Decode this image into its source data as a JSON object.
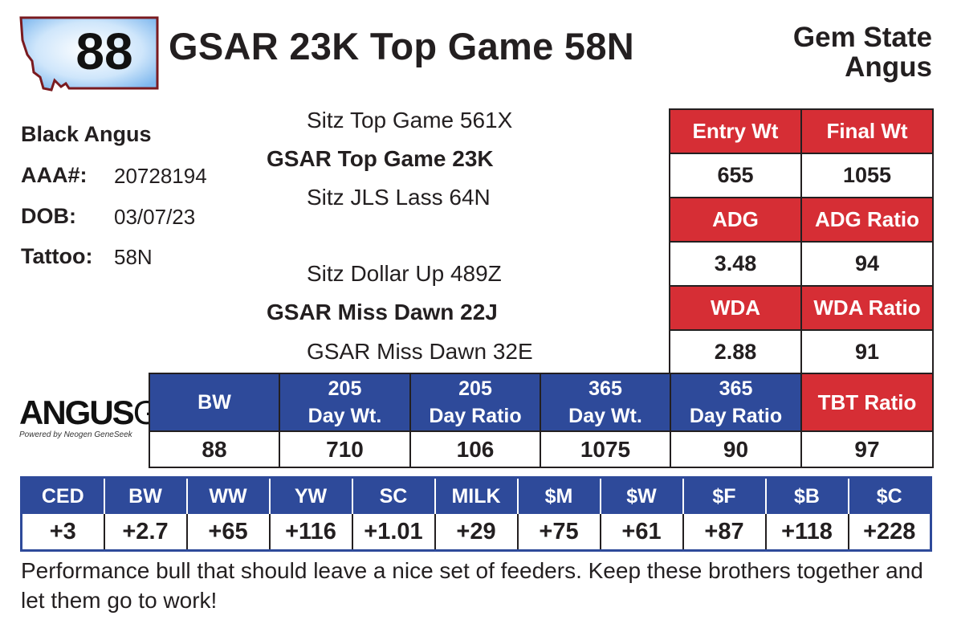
{
  "lot": {
    "number": "88"
  },
  "title": "GSAR 23K Top Game 58N",
  "breeder": {
    "line1": "Gem State",
    "line2": "Angus"
  },
  "info": {
    "breed": "Black Angus",
    "aaa_label": "AAA#:",
    "aaa_value": "20728194",
    "dob_label": "DOB:",
    "dob_value": "03/07/23",
    "tattoo_label": "Tattoo:",
    "tattoo_value": "58N"
  },
  "pedigree": {
    "sire_sire": "Sitz Top Game 561X",
    "sire": "GSAR Top Game 23K",
    "sire_dam": "Sitz JLS Lass 64N",
    "dam_sire": "Sitz Dollar Up 489Z",
    "dam": "GSAR Miss Dawn 22J",
    "dam_dam": "GSAR Miss Dawn 32E"
  },
  "weights": {
    "rows": [
      {
        "h1": "Entry Wt",
        "h2": "Final Wt",
        "v1": "655",
        "v2": "1055"
      },
      {
        "h1": "ADG",
        "h2": "ADG Ratio",
        "v1": "3.48",
        "v2": "94"
      },
      {
        "h1": "WDA",
        "h2": "WDA Ratio",
        "v1": "2.88",
        "v2": "91"
      }
    ]
  },
  "performance": {
    "headers": [
      {
        "l1": "BW",
        "l2": ""
      },
      {
        "l1": "205",
        "l2": "Day Wt."
      },
      {
        "l1": "205",
        "l2": "Day Ratio"
      },
      {
        "l1": "365",
        "l2": "Day Wt."
      },
      {
        "l1": "365",
        "l2": "Day Ratio"
      },
      {
        "l1": "TBT Ratio",
        "l2": ""
      }
    ],
    "values": [
      "88",
      "710",
      "106",
      "1075",
      "90",
      "97"
    ]
  },
  "logo": {
    "main": "ANGUS",
    "suffix": "GS",
    "tagline": "Powered by Neogen GeneSeek"
  },
  "epds": {
    "headers": [
      "CED",
      "BW",
      "WW",
      "YW",
      "SC",
      "MILK",
      "$M",
      "$W",
      "$F",
      "$B",
      "$C"
    ],
    "values": [
      "+3",
      "+2.7",
      "+65",
      "+116",
      "+1.01",
      "+29",
      "+75",
      "+61",
      "+87",
      "+118",
      "+228"
    ]
  },
  "comment": "Performance bull that should leave a nice set of feeders. Keep these brothers together and let them go to work!",
  "colors": {
    "red": "#d62e35",
    "blue": "#2e4a9a",
    "map_border": "#7a1a1f"
  }
}
